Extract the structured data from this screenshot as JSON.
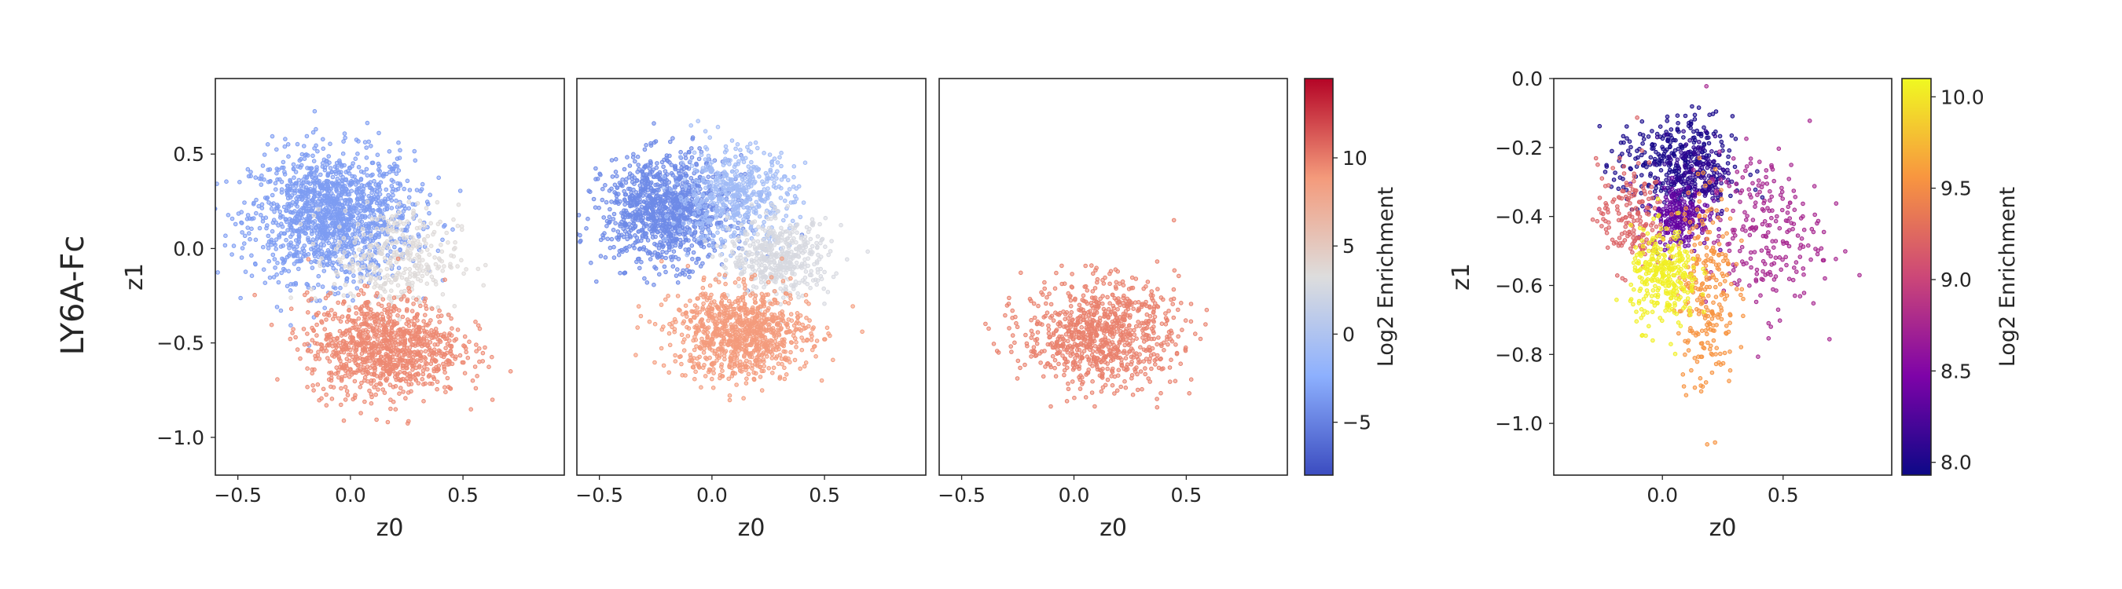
{
  "row_label": "LY6A-Fc",
  "colors": {
    "coolwarm_low": "#3b4cc0",
    "coolwarm_mid": "#dddddd",
    "coolwarm_high": "#b40426",
    "plasma_low": "#0d0887",
    "plasma_high": "#f0f921"
  },
  "chart_data": [
    {
      "type": "scatter",
      "panel": "all-sequences",
      "xlabel": "z0",
      "ylabel": "z1",
      "xlim": [
        -0.6,
        0.95
      ],
      "ylim": [
        -1.2,
        0.9
      ],
      "xticks": [
        -0.5,
        0.0,
        0.5
      ],
      "xtick_labels": [
        "−0.5",
        "0.0",
        "0.5"
      ],
      "yticks": [
        -1.0,
        -0.5,
        0.0,
        0.5
      ],
      "ytick_labels": [
        "−1.0",
        "−0.5",
        "0.0",
        "0.5"
      ],
      "colormap": "coolwarm",
      "color_range": [
        -8,
        14.5
      ],
      "point_groups": [
        {
          "center": [
            -0.08,
            0.17
          ],
          "spread": [
            0.18,
            0.17
          ],
          "count": 1400,
          "color_value": -3.5
        },
        {
          "center": [
            0.2,
            -0.05
          ],
          "spread": [
            0.14,
            0.14
          ],
          "count": 320,
          "color_value": 3.5
        },
        {
          "center": [
            0.15,
            -0.52
          ],
          "spread": [
            0.17,
            0.13
          ],
          "count": 1000,
          "color_value": 9.5
        }
      ]
    },
    {
      "type": "scatter",
      "panel": "cluster-mean",
      "xlabel": "z0",
      "ylabel": "",
      "xlim": [
        -0.6,
        0.95
      ],
      "ylim": [
        -1.2,
        0.9
      ],
      "xticks": [
        -0.5,
        0.0,
        0.5
      ],
      "xtick_labels": [
        "−0.5",
        "0.0",
        "0.5"
      ],
      "yticks": [],
      "ytick_labels": [],
      "colormap": "coolwarm",
      "color_range": [
        -8,
        14.5
      ],
      "point_groups": [
        {
          "center": [
            -0.2,
            0.2
          ],
          "spread": [
            0.14,
            0.14
          ],
          "count": 1100,
          "color_value": -4.5
        },
        {
          "center": [
            0.1,
            0.28
          ],
          "spread": [
            0.13,
            0.13
          ],
          "count": 500,
          "color_value": -1.0
        },
        {
          "center": [
            0.3,
            -0.05
          ],
          "spread": [
            0.11,
            0.1
          ],
          "count": 450,
          "color_value": 2.8
        },
        {
          "center": [
            0.13,
            -0.45
          ],
          "spread": [
            0.15,
            0.12
          ],
          "count": 900,
          "color_value": 8.8
        }
      ]
    },
    {
      "type": "scatter",
      "panel": "high-enrichment",
      "xlabel": "z0",
      "ylabel": "",
      "xlim": [
        -0.6,
        0.95
      ],
      "ylim": [
        -1.2,
        0.9
      ],
      "xticks": [
        -0.5,
        0.0,
        0.5
      ],
      "xtick_labels": [
        "−0.5",
        "0.0",
        "0.5"
      ],
      "yticks": [],
      "ytick_labels": [],
      "colormap": "coolwarm",
      "color_range": [
        -8,
        14.5
      ],
      "point_groups": [
        {
          "center": [
            0.12,
            -0.45
          ],
          "spread": [
            0.17,
            0.14
          ],
          "count": 850,
          "color_value": 9.8
        }
      ]
    },
    {
      "type": "colorbar",
      "label": "Log2 Enrichment",
      "colormap": "coolwarm",
      "range": [
        -8,
        14.5
      ],
      "ticks": [
        -5,
        0,
        5,
        10
      ],
      "tick_labels": [
        "−5",
        "0",
        "5",
        "10"
      ]
    },
    {
      "type": "scatter",
      "panel": "zoomed-clusters",
      "xlabel": "z0",
      "ylabel": "z1",
      "xlim": [
        -0.45,
        0.95
      ],
      "ylim": [
        -1.15,
        0.0
      ],
      "xticks": [
        0.0,
        0.5
      ],
      "xtick_labels": [
        "0.0",
        "0.5"
      ],
      "yticks": [
        -1.0,
        -0.8,
        -0.6,
        -0.4,
        -0.2,
        0.0
      ],
      "ytick_labels": [
        "−1.0",
        "−0.8",
        "−0.6",
        "−0.4",
        "−0.2",
        "0.0"
      ],
      "colormap": "plasma",
      "color_range": [
        7.93,
        10.1
      ],
      "point_groups": [
        {
          "center": [
            0.05,
            -0.25
          ],
          "spread": [
            0.12,
            0.07
          ],
          "count": 320,
          "color_value": 7.98
        },
        {
          "center": [
            0.15,
            -0.28
          ],
          "spread": [
            0.07,
            0.06
          ],
          "count": 160,
          "color_value": 8.1
        },
        {
          "center": [
            0.07,
            -0.4
          ],
          "spread": [
            0.06,
            0.045
          ],
          "count": 220,
          "color_value": 8.35
        },
        {
          "center": [
            0.42,
            -0.45
          ],
          "spread": [
            0.12,
            0.12
          ],
          "count": 230,
          "color_value": 8.75
        },
        {
          "center": [
            -0.13,
            -0.4
          ],
          "spread": [
            0.07,
            0.08
          ],
          "count": 170,
          "color_value": 9.2
        },
        {
          "center": [
            0.18,
            -0.6
          ],
          "spread": [
            0.06,
            0.15
          ],
          "count": 260,
          "color_value": 9.55
        },
        {
          "center": [
            0.01,
            -0.58
          ],
          "spread": [
            0.07,
            0.07
          ],
          "count": 300,
          "color_value": 10.05
        }
      ]
    },
    {
      "type": "colorbar",
      "label": "Log2 Enrichment",
      "colormap": "plasma",
      "range": [
        7.93,
        10.1
      ],
      "ticks": [
        8.0,
        8.5,
        9.0,
        9.5,
        10.0
      ],
      "tick_labels": [
        "8.0",
        "8.5",
        "9.0",
        "9.5",
        "10.0"
      ]
    }
  ]
}
